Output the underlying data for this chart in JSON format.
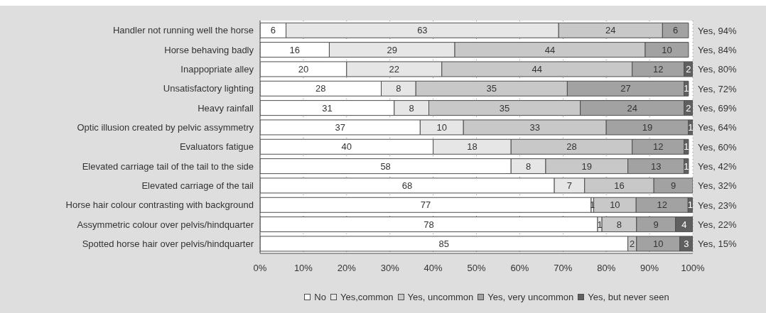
{
  "chart_data": {
    "type": "bar",
    "orientation": "horizontal",
    "stacked": true,
    "categories": [
      "Handler not running well the horse",
      "Horse behaving badly",
      "Inappopriate alley",
      "Unsatisfactory lighting",
      "Heavy rainfall",
      "Optic illusion created by pelvic assymmetry",
      "Evaluators fatigue",
      "Elevated carriage tail of the tail to the side",
      "Elevated carriage of the tail",
      "Horse hair colour contrasting with background",
      "Assymmetric colour over pelvis/hindquarter",
      "Spotted horse hair over pelvis/hindquarter"
    ],
    "series": [
      {
        "name": "No",
        "color": "#ffffff",
        "values": [
          6,
          16,
          20,
          28,
          31,
          37,
          40,
          58,
          68,
          76.5,
          78,
          85
        ],
        "value_labels": [
          "6",
          "16",
          "20",
          "28",
          "31",
          "37",
          "40",
          "58",
          "68",
          "77",
          "78",
          "85"
        ]
      },
      {
        "name": "Yes,common",
        "color": "#e6e6e6",
        "values": [
          63,
          29,
          22,
          8,
          8,
          10,
          18,
          8,
          7,
          0.6,
          1,
          null
        ],
        "value_labels": [
          "63",
          "29",
          "22",
          "8",
          "8",
          "10",
          "18",
          "8",
          "7",
          "1",
          "1",
          null
        ]
      },
      {
        "name": "Yes, uncommon",
        "color": "#c8c8c8",
        "values": [
          24,
          44,
          44,
          35,
          35,
          33,
          28,
          19,
          16,
          9.8,
          8,
          2
        ],
        "value_labels": [
          "24",
          "44",
          "44",
          "35",
          "35",
          "33",
          "28",
          "19",
          "16",
          "10",
          "8",
          "2"
        ]
      },
      {
        "name": "Yes, very uncommon",
        "color": "#a2a2a2",
        "values": [
          6,
          10,
          12,
          27,
          24,
          19,
          12,
          13,
          9,
          12,
          9,
          10
        ],
        "value_labels": [
          "6",
          "10",
          "12",
          "27",
          "24",
          "19",
          "12",
          "13",
          "9",
          "12",
          "9",
          "10"
        ]
      },
      {
        "name": "Yes, but never seen",
        "color": "#606060",
        "values": [
          null,
          null,
          2,
          1,
          2,
          1,
          1,
          1,
          null,
          1,
          4,
          3
        ],
        "value_labels": [
          null,
          null,
          "2",
          "1",
          "2",
          "1",
          "1",
          "1",
          null,
          "1",
          "4",
          "3"
        ]
      }
    ],
    "xlim": [
      0,
      100
    ],
    "xticks": [
      {
        "value": 0,
        "label": "0%"
      },
      {
        "value": 10,
        "label": "10%"
      },
      {
        "value": 20,
        "label": "20%"
      },
      {
        "value": 30,
        "label": "30%"
      },
      {
        "value": 40,
        "label": "40%"
      },
      {
        "value": 50,
        "label": "50%"
      },
      {
        "value": 60,
        "label": "60%"
      },
      {
        "value": 70,
        "label": "70%"
      },
      {
        "value": 80,
        "label": "80%"
      },
      {
        "value": 90,
        "label": "90%"
      },
      {
        "value": 100,
        "label": "100%"
      }
    ],
    "annotations": [
      "Yes, 94%",
      "Yes, 84%",
      "Yes, 80%",
      "Yes, 72%",
      "Yes, 69%",
      "Yes, 64%",
      "Yes, 60%",
      "Yes, 42%",
      "Yes, 32%",
      "Yes, 23%",
      "Yes, 22%",
      "Yes, 15%"
    ],
    "grid": "x",
    "legend": "bottom"
  }
}
